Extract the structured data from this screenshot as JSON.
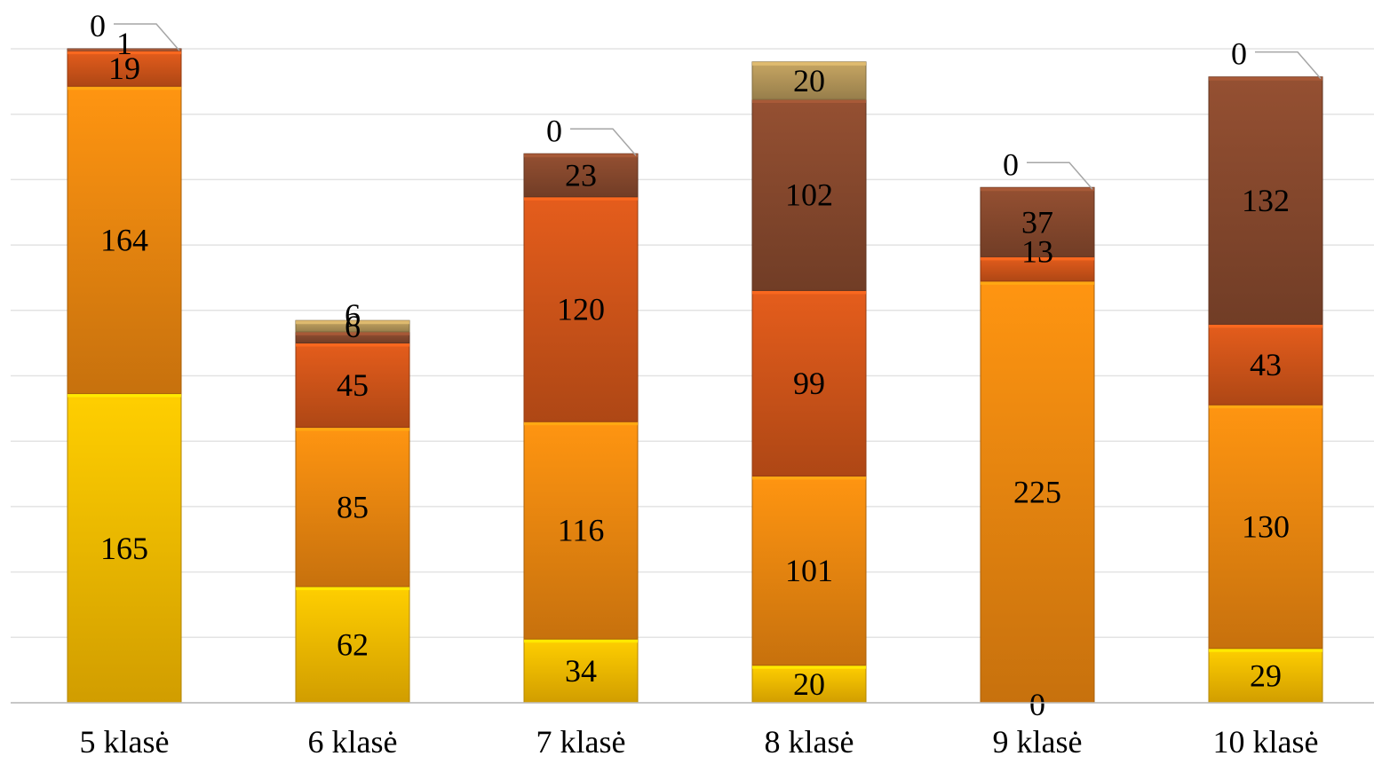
{
  "chart_data": {
    "type": "bar",
    "stacked": true,
    "title": "",
    "categories": [
      "5 klasė",
      "6 klasė",
      "7 klasė",
      "8 klasė",
      "9 klasė",
      "10 klasė"
    ],
    "series": [
      {
        "values": [
          165,
          62,
          34,
          20,
          0,
          29
        ],
        "color": "#ffc000"
      },
      {
        "values": [
          164,
          85,
          116,
          101,
          225,
          130
        ],
        "color": "#f38a10"
      },
      {
        "values": [
          19,
          45,
          120,
          99,
          13,
          43
        ],
        "color": "#d4561a"
      },
      {
        "values": [
          1,
          6,
          23,
          102,
          37,
          132
        ],
        "color": "#8a4a2e"
      },
      {
        "values": [
          0,
          6,
          0,
          20,
          0,
          0
        ],
        "color": "#b89a5c"
      }
    ],
    "ylim": [
      0,
      349
    ],
    "grid": true
  }
}
